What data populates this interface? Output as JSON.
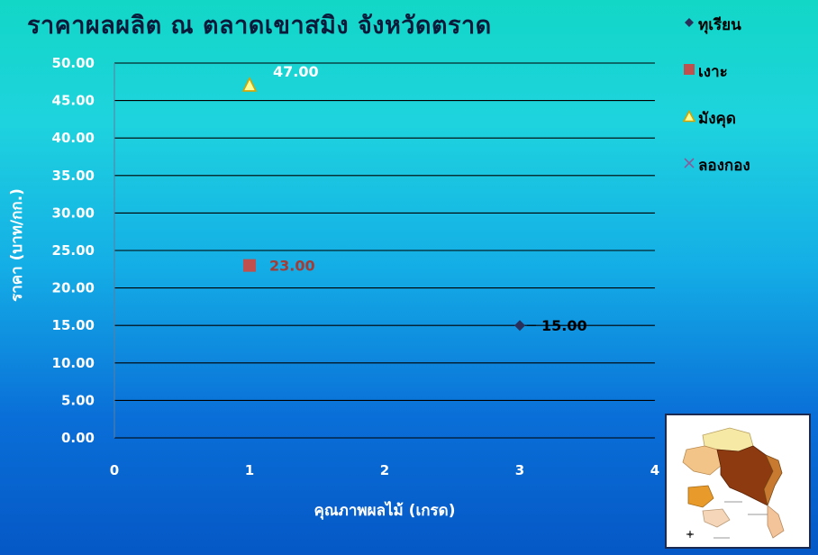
{
  "title": "ราคาผลผลิต  ณ  ตลาดเขาสมิง  จังหวัดตราด",
  "colors": {
    "durian": "#2a2f5a",
    "rambutan": "#c0504d",
    "mangosteen_fill": "#ffff99",
    "mangosteen_edge": "#d9a300",
    "longkong": "#8a5a9a",
    "gridline": "#000000"
  },
  "legend": [
    {
      "label": "ทุเรียน",
      "marker": "diamond",
      "color": "#2a2f5a"
    },
    {
      "label": "เงาะ",
      "marker": "square",
      "color": "#c0504d"
    },
    {
      "label": "มังคุด",
      "marker": "triangle",
      "color": "#ffff99"
    },
    {
      "label": "ลองกอง",
      "marker": "cross",
      "color": "#8a5a9a"
    }
  ],
  "chart_data": {
    "type": "scatter",
    "title": "ราคาผลผลิต  ณ  ตลาดเขาสมิง  จังหวัดตราด",
    "xlabel": "คุณภาพผลไม้  (เกรด)",
    "ylabel": "ราคา  (บาท/กก.)",
    "xlim": [
      0,
      4
    ],
    "ylim": [
      0,
      50
    ],
    "x_ticks": [
      "0",
      "1",
      "2",
      "3",
      "4"
    ],
    "y_ticks": [
      "0.00",
      "5.00",
      "10.00",
      "15.00",
      "20.00",
      "25.00",
      "30.00",
      "35.00",
      "40.00",
      "45.00",
      "50.00"
    ],
    "grid": "horizontal",
    "legend_position": "right",
    "series": [
      {
        "name": "ทุเรียน",
        "marker": "diamond",
        "points": [
          {
            "x": 3,
            "y": 15,
            "label": "15.00"
          }
        ]
      },
      {
        "name": "เงาะ",
        "marker": "square",
        "points": [
          {
            "x": 1,
            "y": 23,
            "label": "23.00"
          }
        ]
      },
      {
        "name": "มังคุด",
        "marker": "triangle",
        "points": [
          {
            "x": 1,
            "y": 47,
            "label": "47.00"
          }
        ]
      },
      {
        "name": "ลองกอง",
        "marker": "cross",
        "points": []
      }
    ]
  },
  "map_image": {
    "icon": "province-map-icon"
  }
}
